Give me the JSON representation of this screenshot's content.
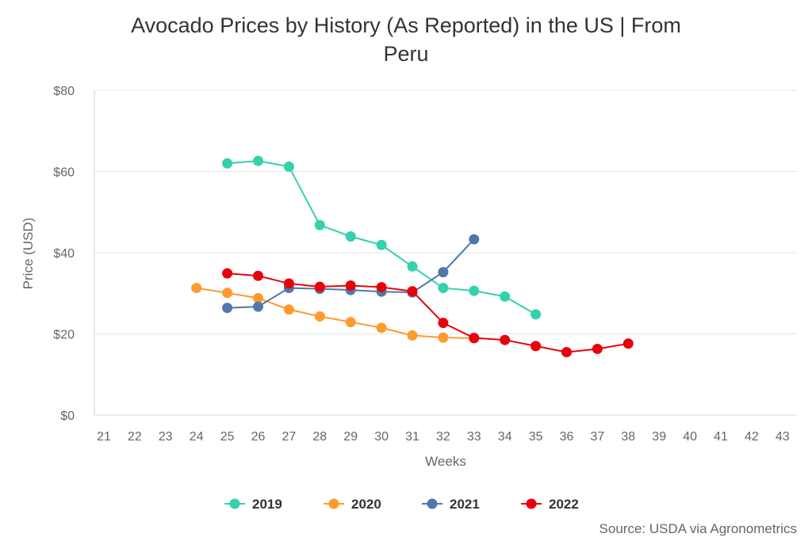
{
  "chart_data": {
    "type": "line",
    "title": "Avocado Prices by History (As Reported) in the US | From Peru",
    "title_lines": [
      "Avocado Prices by History (As Reported) in the US | From",
      "Peru"
    ],
    "xlabel": "Weeks",
    "ylabel": "Price (USD)",
    "x_ticks": [
      "21",
      "22",
      "23",
      "24",
      "25",
      "26",
      "27",
      "28",
      "29",
      "30",
      "31",
      "32",
      "33",
      "34",
      "35",
      "36",
      "37",
      "38",
      "39",
      "40",
      "41",
      "42",
      "43"
    ],
    "y_ticks": [
      "$0",
      "$20",
      "$40",
      "$60",
      "$80"
    ],
    "xlim": [
      21,
      43
    ],
    "ylim": [
      0,
      80
    ],
    "grid": "horizontal",
    "legend_position": "bottom",
    "series": [
      {
        "name": "2019",
        "color": "#34d1ad",
        "x": [
          25,
          26,
          27,
          28,
          29,
          30,
          31,
          32,
          33,
          34,
          35
        ],
        "y": [
          62.0,
          62.6,
          61.2,
          46.8,
          44.0,
          41.9,
          36.6,
          31.3,
          30.6,
          29.2,
          24.8
        ]
      },
      {
        "name": "2020",
        "color": "#ff9a2e",
        "x": [
          24,
          25,
          26,
          27,
          28,
          29,
          30,
          31,
          32,
          33
        ],
        "y": [
          31.3,
          30.1,
          28.8,
          26.0,
          24.3,
          22.9,
          21.5,
          19.6,
          19.1,
          18.9
        ]
      },
      {
        "name": "2021",
        "color": "#4f78a8",
        "x": [
          25,
          26,
          27,
          28,
          29,
          30,
          31,
          32,
          33
        ],
        "y": [
          26.4,
          26.7,
          31.3,
          31.1,
          30.8,
          30.4,
          30.2,
          35.2,
          43.3
        ]
      },
      {
        "name": "2022",
        "color": "#e8000b",
        "x": [
          25,
          26,
          27,
          28,
          29,
          30,
          31,
          32,
          33,
          34,
          35,
          36,
          37,
          38
        ],
        "y": [
          34.9,
          34.3,
          32.4,
          31.6,
          31.9,
          31.5,
          30.5,
          22.7,
          19.0,
          18.5,
          17.0,
          15.5,
          16.3,
          17.6
        ]
      }
    ],
    "source": "Source: USDA via Agronometrics"
  }
}
